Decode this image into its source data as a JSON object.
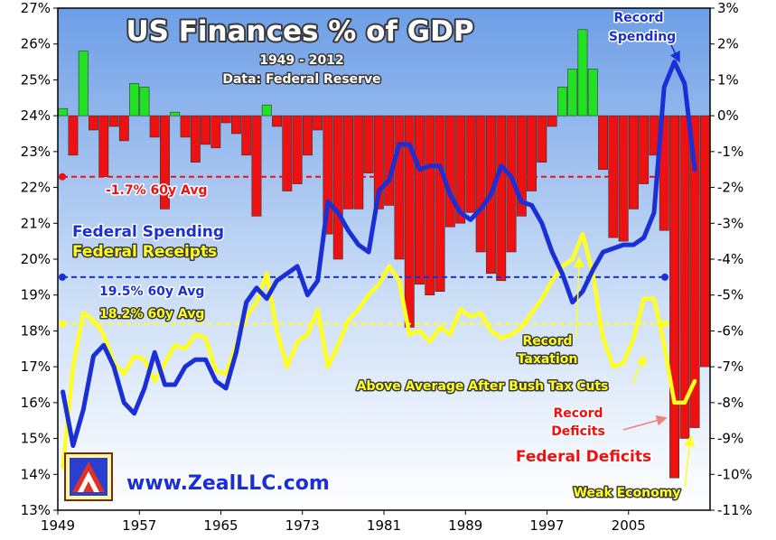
{
  "chart_data": {
    "type": "bar+line",
    "title": "US Finances % of GDP",
    "subtitle": "1949 - 2012",
    "source": "Data: Federal Reserve",
    "left_axis": {
      "ticks": [
        "27%",
        "26%",
        "25%",
        "24%",
        "23%",
        "22%",
        "21%",
        "20%",
        "19%",
        "18%",
        "17%",
        "16%",
        "15%",
        "14%",
        "13%"
      ],
      "range": [
        13,
        27
      ]
    },
    "right_axis": {
      "ticks": [
        "3%",
        "2%",
        "1%",
        "0%",
        "-1%",
        "-2%",
        "-3%",
        "-4%",
        "-5%",
        "-6%",
        "-7%",
        "-8%",
        "-9%",
        "-10%",
        "-11%"
      ],
      "range": [
        -11,
        3
      ]
    },
    "x_axis": {
      "tick_labels": [
        "1949",
        "1957",
        "1965",
        "1973",
        "1981",
        "1989",
        "1997",
        "2005"
      ],
      "tick_years": [
        1949,
        1957,
        1965,
        1973,
        1981,
        1989,
        1997,
        2005
      ]
    },
    "years": [
      1949,
      1950,
      1951,
      1952,
      1953,
      1954,
      1955,
      1956,
      1957,
      1958,
      1959,
      1960,
      1961,
      1962,
      1963,
      1964,
      1965,
      1966,
      1967,
      1968,
      1969,
      1970,
      1971,
      1972,
      1973,
      1974,
      1975,
      1976,
      1977,
      1978,
      1979,
      1980,
      1981,
      1982,
      1983,
      1984,
      1985,
      1986,
      1987,
      1988,
      1989,
      1990,
      1991,
      1992,
      1993,
      1994,
      1995,
      1996,
      1997,
      1998,
      1999,
      2000,
      2001,
      2002,
      2003,
      2004,
      2005,
      2006,
      2007,
      2008,
      2009,
      2010,
      2011,
      2012
    ],
    "series": [
      {
        "name": "Federal Spending",
        "type": "line",
        "axis": "left",
        "color": "#1a2fd6",
        "values": [
          16.3,
          14.8,
          15.8,
          17.3,
          17.6,
          17.0,
          16.0,
          15.7,
          16.4,
          17.4,
          16.5,
          16.5,
          17.0,
          17.2,
          17.2,
          16.6,
          16.4,
          17.4,
          18.8,
          19.2,
          18.9,
          19.4,
          19.6,
          19.8,
          19.0,
          19.4,
          21.6,
          21.3,
          20.8,
          20.4,
          20.2,
          21.9,
          22.2,
          23.2,
          23.2,
          22.5,
          22.6,
          22.6,
          21.8,
          21.3,
          21.1,
          21.4,
          21.8,
          22.6,
          22.3,
          21.6,
          21.5,
          21.0,
          20.2,
          19.6,
          18.8,
          19.1,
          19.7,
          20.2,
          20.3,
          20.4,
          20.4,
          20.6,
          21.3,
          24.8,
          25.5,
          24.9,
          22.5,
          null
        ]
      },
      {
        "name": "Federal Receipts",
        "type": "line",
        "axis": "left",
        "color": "#ffff22",
        "values": [
          14.2,
          17.0,
          18.5,
          18.3,
          17.9,
          17.1,
          16.8,
          17.3,
          17.2,
          16.6,
          17.1,
          17.6,
          17.5,
          17.9,
          17.8,
          16.9,
          16.8,
          17.6,
          18.4,
          18.8,
          19.6,
          18.0,
          17.0,
          17.7,
          17.9,
          18.6,
          17.0,
          17.6,
          18.3,
          18.6,
          19.0,
          19.3,
          19.8,
          19.4,
          17.9,
          18.0,
          17.7,
          18.1,
          17.9,
          18.6,
          18.4,
          18.5,
          18.0,
          17.8,
          17.9,
          18.1,
          18.5,
          18.9,
          19.4,
          19.8,
          20.0,
          20.7,
          19.6,
          17.8,
          17.0,
          17.1,
          17.8,
          18.9,
          18.9,
          17.6,
          16.0,
          16.0,
          16.6,
          null
        ]
      },
      {
        "name": "Federal Deficits",
        "type": "bar",
        "axis": "right",
        "positive_color": "#22e022",
        "negative_color": "#ee1111",
        "values": [
          0.2,
          -1.1,
          1.8,
          -0.4,
          -1.7,
          -0.3,
          -0.7,
          0.9,
          0.8,
          -0.6,
          -2.6,
          0.1,
          -0.6,
          -1.3,
          -0.8,
          -0.9,
          -0.2,
          -0.5,
          -1.1,
          -2.8,
          0.3,
          -0.3,
          -2.1,
          -1.9,
          -1.1,
          -0.4,
          -3.3,
          -4.0,
          -2.6,
          -2.6,
          -1.6,
          -2.6,
          -2.5,
          -4.0,
          -5.9,
          -4.7,
          -5.0,
          -4.9,
          -3.1,
          -3.0,
          -2.7,
          -3.8,
          -4.4,
          -4.6,
          -3.8,
          -2.8,
          -2.1,
          -1.3,
          -0.3,
          0.8,
          1.3,
          2.4,
          1.3,
          -1.5,
          -3.4,
          -3.5,
          -2.6,
          -1.9,
          -1.1,
          -3.2,
          -10.1,
          -9.0,
          -8.7,
          -7.0
        ]
      }
    ],
    "averages": [
      {
        "label": "-1.7%  60y Avg",
        "axis": "right",
        "value": -1.7,
        "color": "#ee1111"
      },
      {
        "label": "19.5%  60y Avg",
        "axis": "left",
        "value": 19.5,
        "color": "#1a2fd6"
      },
      {
        "label": "18.2%  60y Avg",
        "axis": "left",
        "value": 18.2,
        "color": "#ffff22"
      }
    ],
    "legend": {
      "spending": "Federal Spending",
      "receipts": "Federal Receipts",
      "deficits": "Federal Deficits"
    },
    "annotations": {
      "record_spending_1": "Record",
      "record_spending_2": "Spending",
      "record_taxation_1": "Record",
      "record_taxation_2": "Taxation",
      "bush": "Above Average After Bush Tax Cuts",
      "record_deficits_1": "Record",
      "record_deficits_2": "Deficits",
      "weak_economy": "Weak Economy"
    },
    "website": "www.ZealLLC.com",
    "grid": false,
    "colors": {
      "background_top": "#6d9ee6",
      "background_bottom": "#ffffff",
      "title_fill": "#ffffff",
      "title_stroke": "#3a3a3a"
    }
  }
}
